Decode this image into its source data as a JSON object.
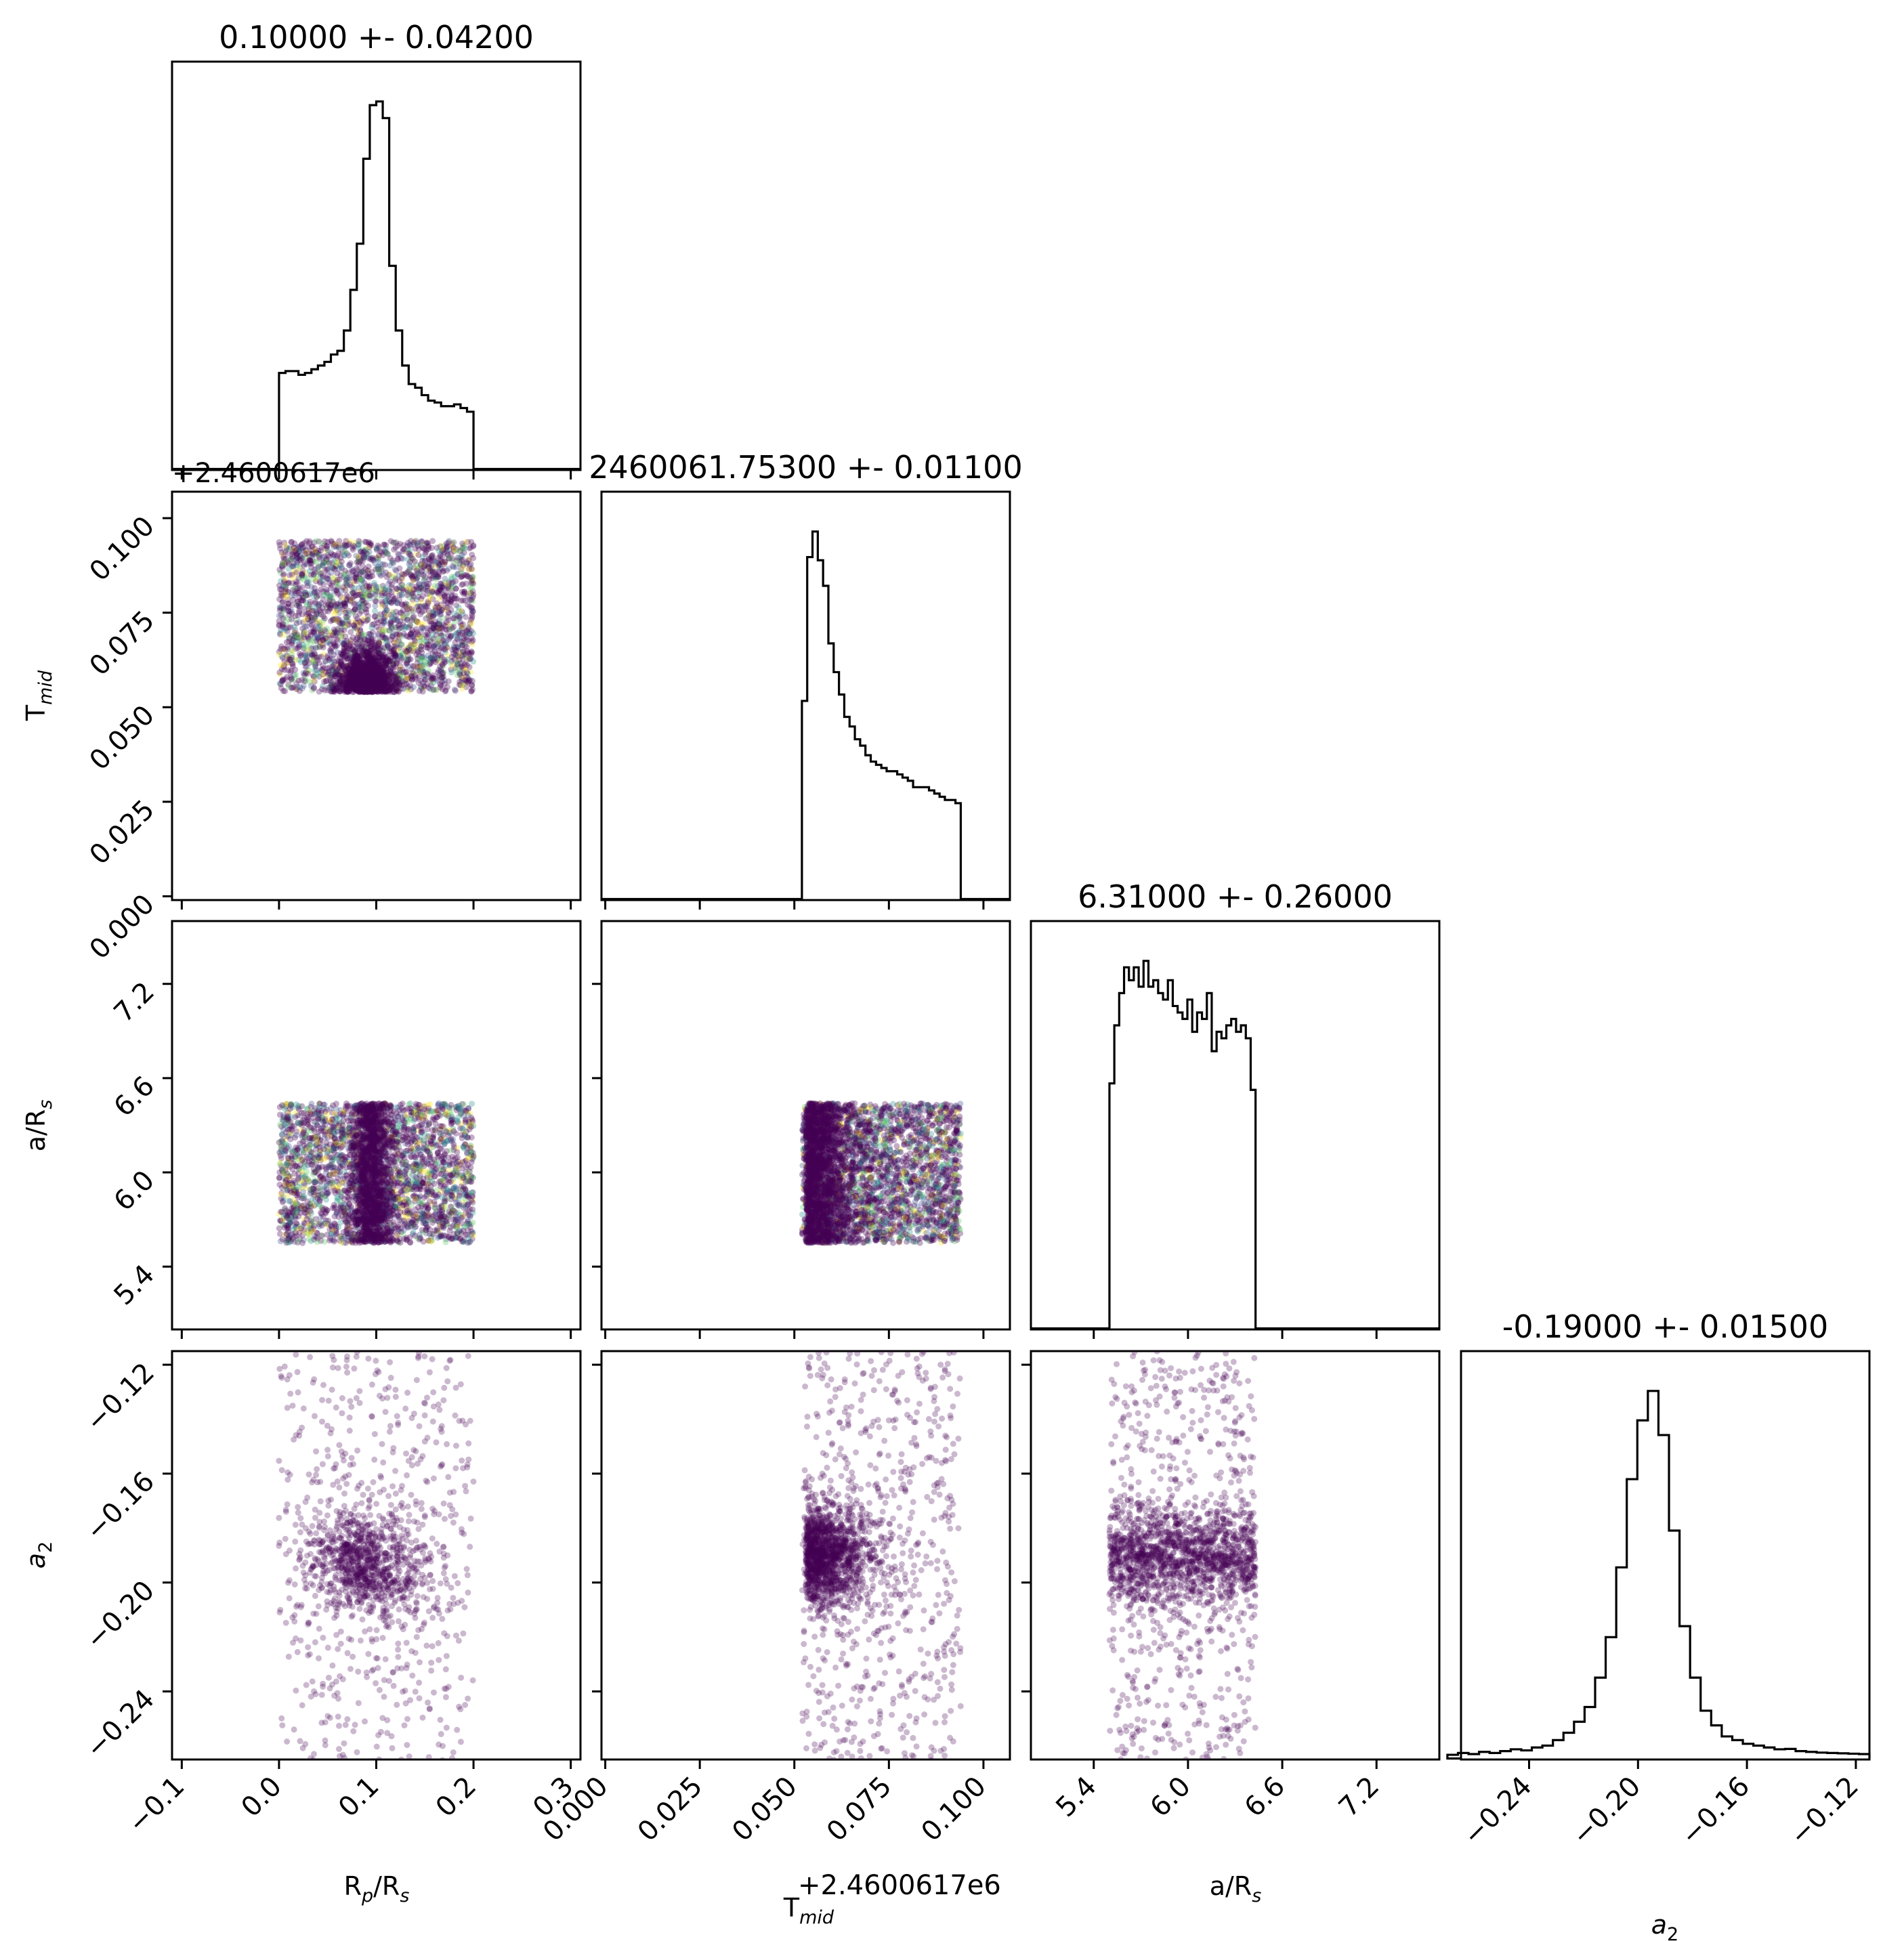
{
  "chart_data": {
    "type": "corner",
    "parameters": [
      {
        "key": "rp",
        "label": "R_p/R_s",
        "title": "0.10000 +- 0.04200"
      },
      {
        "key": "tmid",
        "label": "T_mid",
        "title": "2460061.75300 +- 0.01100"
      },
      {
        "key": "ars",
        "label": "a/R_s",
        "title": "6.31000 +- 0.26000"
      },
      {
        "key": "a2",
        "label": "a_2",
        "title": "-0.19000 +- 0.01500"
      }
    ],
    "labels": {
      "rp": {
        "base": "R",
        "sub1": "p",
        "mid": "/R",
        "sub2": "s"
      },
      "tmid": {
        "base": "T",
        "sub1": "mid"
      },
      "ars": {
        "base": "a/R",
        "sub1": "s"
      },
      "a2": {
        "base": "a",
        "sub1": "2"
      }
    },
    "offset_text": "+2.4600617e6",
    "ranges": {
      "rp": [
        -0.11,
        0.31
      ],
      "tmid": [
        -0.001,
        0.107
      ],
      "ars": [
        5.0,
        7.6
      ],
      "a2": [
        -0.265,
        -0.115
      ]
    },
    "ticks": {
      "rp": [
        -0.1,
        0.0,
        0.1,
        0.2,
        0.3
      ],
      "tmid": [
        0.0,
        0.025,
        0.05,
        0.075,
        0.1
      ],
      "ars": [
        5.4,
        6.0,
        6.6,
        7.2
      ],
      "a2": [
        -0.24,
        -0.2,
        -0.16,
        -0.12
      ]
    },
    "tick_labels": {
      "rp": [
        "−0.1",
        "0.0",
        "0.1",
        "0.2",
        "0.3"
      ],
      "tmid": [
        "0.000",
        "0.025",
        "0.050",
        "0.075",
        "0.100"
      ],
      "ars": [
        "5.4",
        "6.0",
        "6.6",
        "7.2"
      ],
      "a2": [
        "−0.24",
        "−0.20",
        "−0.16",
        "−0.12"
      ]
    },
    "histograms": {
      "rp": {
        "edges": [
          0.0,
          0.2
        ],
        "counts": [
          52,
          53,
          53,
          51,
          52,
          54,
          56,
          58,
          62,
          64,
          75,
          97,
          122,
          168,
          197,
          199,
          190,
          110,
          75,
          56,
          46,
          44,
          40,
          37,
          36,
          34,
          34,
          35,
          33,
          31
        ]
      },
      "tmid": {
        "edges": [
          0.052,
          0.094
        ],
        "counts": [
          62,
          107,
          115,
          106,
          98,
          80,
          71,
          64,
          57,
          54,
          50,
          48,
          45,
          43,
          42,
          41,
          40,
          40,
          39,
          38,
          37,
          35,
          35,
          35,
          34,
          33,
          32,
          31,
          31,
          30
        ]
      },
      "ars": {
        "edges": [
          5.5,
          6.43
        ],
        "counts": [
          38,
          47,
          52,
          56,
          54,
          56,
          53,
          57,
          53,
          54,
          52,
          51,
          54,
          50,
          49,
          48,
          51,
          46,
          49,
          48,
          52,
          43,
          46,
          45,
          47,
          48,
          46,
          47,
          45,
          37
        ]
      },
      "a2": {
        "edges": [
          -0.27,
          -0.115
        ],
        "counts": [
          1,
          1.5,
          1.2,
          1.8,
          1.5,
          2.0,
          2.5,
          2.2,
          3.0,
          3.5,
          5,
          7,
          10,
          14,
          22,
          33,
          52,
          76,
          92,
          100,
          88,
          62,
          36,
          22,
          13,
          9,
          6,
          5,
          4,
          3.5,
          3,
          2.5,
          2.6,
          2,
          1.8,
          1.6,
          1.5,
          1.4,
          1.3,
          1.2
        ]
      }
    },
    "scatter_generators": {
      "rp_tmid": {
        "xmin": 0.0,
        "xmax": 0.2,
        "xcenter": 0.09,
        "xsd": 0.013,
        "ymin": 0.054,
        "ymax": 0.094,
        "yscale": 0.005,
        "n_core": 1300,
        "n_uniform": 2600
      },
      "rp_ars": {
        "xmin": 0.0,
        "xmax": 0.2,
        "xcenter": 0.095,
        "xsd": 0.01,
        "ymin": 5.55,
        "ymax": 6.44,
        "n_core": 1400,
        "n_uniform": 2600
      },
      "tmid_ars": {
        "xmin": 0.052,
        "xmax": 0.094,
        "xedge": 0.053,
        "xscale": 0.006,
        "ymin": 5.55,
        "ymax": 6.44,
        "n_core": 1700,
        "n_uniform": 2400
      },
      "rp_a2": {
        "xmin": 0.0,
        "xmax": 0.2,
        "xcenter": 0.09,
        "xsd": 0.03,
        "ycenter": -0.193,
        "ysd": 0.01,
        "n_core": 900,
        "n_uniform": 550
      },
      "tmid_a2": {
        "xmin": 0.052,
        "xmax": 0.094,
        "xedge": 0.053,
        "xscale": 0.006,
        "ycenter": -0.19,
        "ysd": 0.009,
        "n_core": 1300,
        "n_uniform": 650
      },
      "ars_a2": {
        "xmin": 5.5,
        "xmax": 6.43,
        "ycenter": -0.19,
        "ysd": 0.009,
        "n_core": 1400,
        "n_uniform": 600
      }
    },
    "colors": {
      "scatter_main": "#440154",
      "scatter_palette": [
        "#440154",
        "#3b528b",
        "#21918c",
        "#5ec962",
        "#fde725"
      ],
      "line": "#000000",
      "frame": "#000000"
    },
    "grid": false
  }
}
